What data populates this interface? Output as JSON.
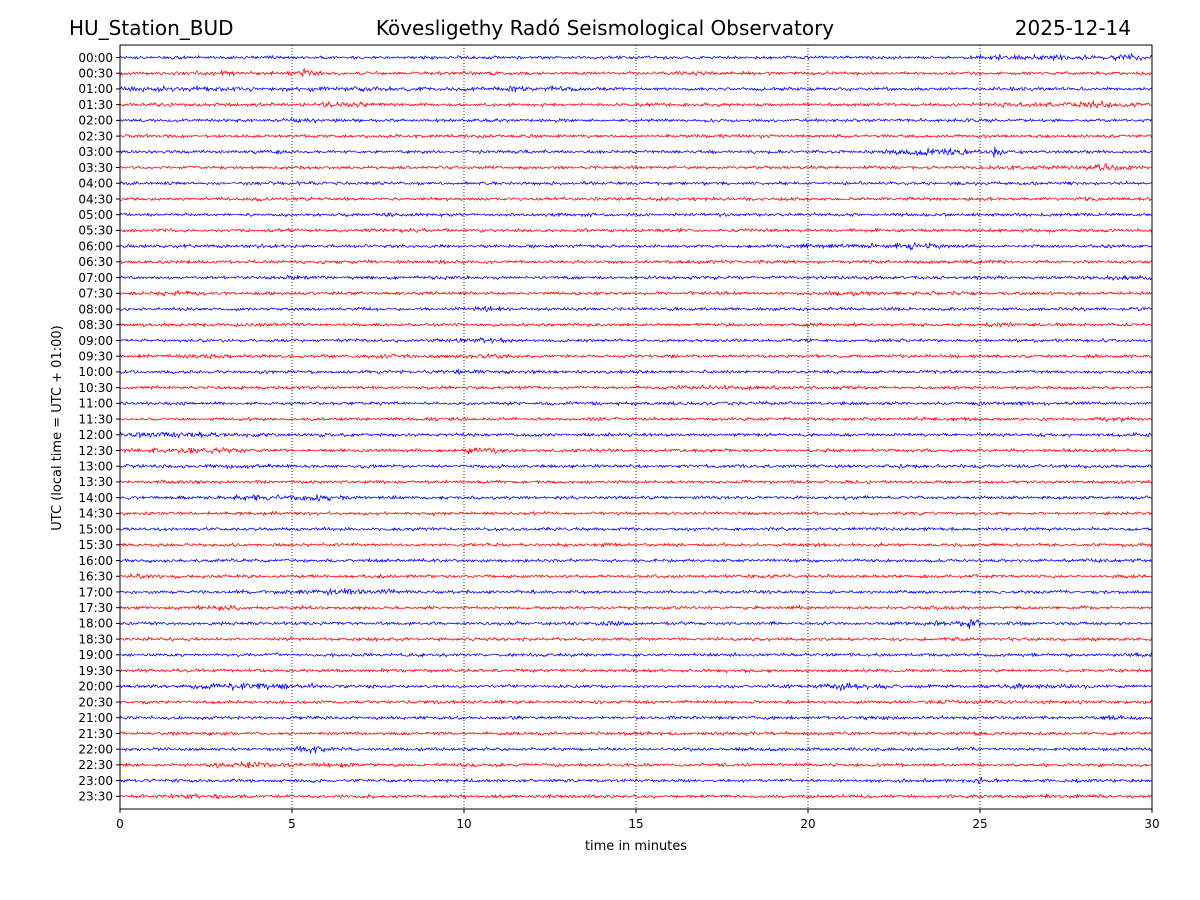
{
  "chart_data": {
    "type": "line",
    "station": "HU_Station_BUD",
    "title": "Kövesligethy Radó Seismological Observatory",
    "date": "2025-12-14",
    "xlabel": "time in minutes",
    "ylabel": "UTC (local time = UTC + 01:00)",
    "xlim": [
      0,
      30
    ],
    "x_ticks": [
      0,
      5,
      10,
      15,
      20,
      25,
      30
    ],
    "grid": "vertical dotted at x ticks",
    "row_colors": [
      "#0000ff",
      "#ff0000"
    ],
    "rows": [
      {
        "label": "00:00",
        "events": [
          [
            25.3,
            0.6,
            1.5
          ],
          [
            27.1,
            0.6,
            2.0
          ],
          [
            29.3,
            0.4,
            2.3
          ]
        ]
      },
      {
        "label": "00:30",
        "events": [
          [
            5.5,
            0.3,
            2.5
          ],
          [
            2.8,
            0.8,
            1.3
          ],
          [
            16.5,
            0.6,
            1.3
          ]
        ]
      },
      {
        "label": "01:00",
        "events": [
          [
            1.5,
            1.4,
            1.6
          ],
          [
            7.5,
            2.0,
            1.4
          ],
          [
            11.8,
            1.0,
            1.7
          ]
        ]
      },
      {
        "label": "01:30",
        "events": [
          [
            6.5,
            0.6,
            1.8
          ],
          [
            26.0,
            0.8,
            1.5
          ],
          [
            28.5,
            0.7,
            2.0
          ]
        ]
      },
      {
        "label": "02:00",
        "events": [
          [
            5.3,
            0.5,
            1.3
          ]
        ]
      },
      {
        "label": "02:30",
        "events": [
          [
            16.8,
            0.3,
            1.4
          ]
        ]
      },
      {
        "label": "03:00",
        "events": [
          [
            23.0,
            0.6,
            1.8
          ],
          [
            24.0,
            0.7,
            2.2
          ],
          [
            25.5,
            0.1,
            3.2
          ]
        ]
      },
      {
        "label": "03:30",
        "events": [
          [
            28.6,
            0.5,
            2.2
          ],
          [
            26.5,
            0.8,
            1.3
          ]
        ]
      },
      {
        "label": "04:00",
        "events": [
          [
            5.3,
            0.5,
            1.3
          ]
        ]
      },
      {
        "label": "04:30",
        "events": [
          [
            5.2,
            0.5,
            1.3
          ]
        ]
      },
      {
        "label": "05:00",
        "events": []
      },
      {
        "label": "05:30",
        "events": [
          [
            8.0,
            0.6,
            1.3
          ]
        ]
      },
      {
        "label": "06:00",
        "events": [
          [
            19.5,
            0.5,
            1.5
          ],
          [
            21.0,
            0.7,
            1.5
          ],
          [
            23.0,
            0.7,
            2.2
          ]
        ]
      },
      {
        "label": "06:30",
        "events": [
          [
            10.2,
            0.4,
            1.3
          ],
          [
            25.0,
            0.3,
            1.3
          ]
        ]
      },
      {
        "label": "07:00",
        "events": [
          [
            5.3,
            0.4,
            1.3
          ],
          [
            29.3,
            0.5,
            1.5
          ]
        ]
      },
      {
        "label": "07:30",
        "events": [
          [
            1.6,
            0.5,
            1.5
          ],
          [
            21.0,
            0.8,
            1.4
          ],
          [
            24.0,
            0.6,
            1.3
          ]
        ]
      },
      {
        "label": "08:00",
        "events": [
          [
            10.7,
            0.5,
            1.5
          ]
        ]
      },
      {
        "label": "08:30",
        "events": [
          [
            25.5,
            0.3,
            1.5
          ]
        ]
      },
      {
        "label": "09:00",
        "events": [
          [
            10.5,
            0.4,
            1.8
          ]
        ]
      },
      {
        "label": "09:30",
        "events": [
          [
            2.8,
            0.3,
            1.8
          ],
          [
            10.2,
            0.8,
            1.7
          ],
          [
            7.5,
            0.3,
            1.4
          ]
        ]
      },
      {
        "label": "10:00",
        "events": [
          [
            10.3,
            0.6,
            1.6
          ],
          [
            29.5,
            0.3,
            1.6
          ]
        ]
      },
      {
        "label": "10:30",
        "events": [
          [
            18.0,
            1.5,
            1.4
          ]
        ]
      },
      {
        "label": "11:00",
        "events": [
          [
            25.8,
            0.8,
            1.4
          ]
        ]
      },
      {
        "label": "11:30",
        "events": [
          [
            29.0,
            0.5,
            1.5
          ]
        ]
      },
      {
        "label": "12:00",
        "events": [
          [
            0.5,
            1.0,
            1.7
          ],
          [
            3.0,
            1.5,
            1.4
          ],
          [
            29.5,
            0.6,
            1.5
          ]
        ]
      },
      {
        "label": "12:30",
        "events": [
          [
            1.8,
            1.2,
            1.7
          ],
          [
            3.2,
            0.2,
            2.0
          ],
          [
            10.3,
            0.5,
            2.0
          ]
        ]
      },
      {
        "label": "13:00",
        "events": [
          [
            3.0,
            0.8,
            1.4
          ]
        ]
      },
      {
        "label": "13:30",
        "events": []
      },
      {
        "label": "14:00",
        "events": [
          [
            4.5,
            1.3,
            1.7
          ],
          [
            5.8,
            0.3,
            2.0
          ]
        ]
      },
      {
        "label": "14:30",
        "events": [
          [
            9.0,
            0.2,
            1.6
          ]
        ]
      },
      {
        "label": "15:00",
        "events": []
      },
      {
        "label": "15:30",
        "events": [
          [
            14.3,
            0.2,
            1.3
          ]
        ]
      },
      {
        "label": "16:00",
        "events": [
          [
            29.0,
            0.6,
            1.4
          ]
        ]
      },
      {
        "label": "16:30",
        "events": [
          [
            0.7,
            0.6,
            1.5
          ]
        ]
      },
      {
        "label": "17:00",
        "events": [
          [
            6.8,
            0.8,
            2.0
          ],
          [
            4.5,
            0.8,
            1.3
          ]
        ]
      },
      {
        "label": "17:30",
        "events": [
          [
            2.8,
            0.5,
            1.6
          ],
          [
            19.8,
            0.4,
            1.4
          ],
          [
            23.8,
            0.4,
            1.4
          ]
        ]
      },
      {
        "label": "18:00",
        "events": [
          [
            14.2,
            0.3,
            2.0
          ],
          [
            24.0,
            0.5,
            2.0
          ],
          [
            24.7,
            0.2,
            2.8
          ]
        ]
      },
      {
        "label": "18:30",
        "events": []
      },
      {
        "label": "19:00",
        "events": [
          [
            29.5,
            0.5,
            1.4
          ]
        ]
      },
      {
        "label": "19:30",
        "events": []
      },
      {
        "label": "20:00",
        "events": [
          [
            3.0,
            1.0,
            1.8
          ],
          [
            4.8,
            1.0,
            1.8
          ],
          [
            21.0,
            0.3,
            2.4
          ],
          [
            22.0,
            0.4,
            1.6
          ],
          [
            26.5,
            1.0,
            1.8
          ]
        ]
      },
      {
        "label": "20:30",
        "events": [
          [
            25.0,
            0.6,
            1.3
          ]
        ]
      },
      {
        "label": "21:00",
        "events": [
          [
            22.0,
            0.4,
            1.6
          ],
          [
            29.0,
            0.4,
            1.8
          ]
        ]
      },
      {
        "label": "21:30",
        "events": [
          [
            15.0,
            0.3,
            1.3
          ]
        ]
      },
      {
        "label": "22:00",
        "events": [
          [
            5.5,
            0.4,
            2.3
          ],
          [
            24.7,
            0.2,
            1.6
          ]
        ]
      },
      {
        "label": "22:30",
        "events": [
          [
            3.5,
            0.6,
            1.8
          ],
          [
            5.5,
            0.8,
            1.6
          ]
        ]
      },
      {
        "label": "23:00",
        "events": [
          [
            25.0,
            0.1,
            2.2
          ]
        ]
      },
      {
        "label": "23:30",
        "events": [
          [
            2.2,
            0.7,
            1.4
          ],
          [
            27.0,
            0.6,
            1.3
          ]
        ]
      }
    ]
  }
}
